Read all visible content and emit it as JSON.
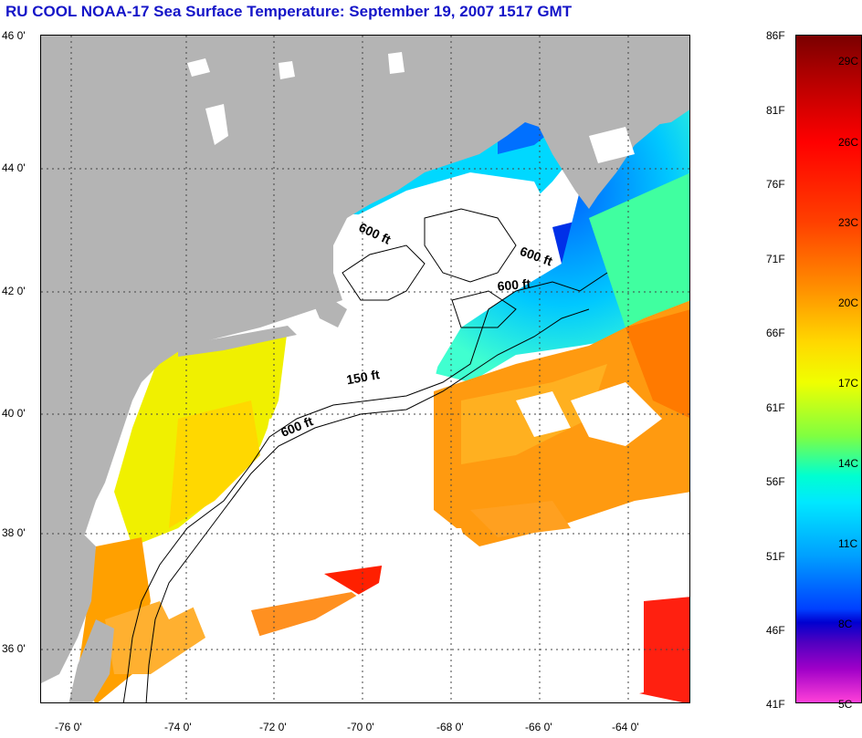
{
  "title": "RU COOL  NOAA-17  Sea Surface Temperature:  September 19, 2007 1517 GMT",
  "axes": {
    "lat_labels": [
      "46 0'",
      "44 0'",
      "42 0'",
      "40 0'",
      "38 0'",
      "36 0'"
    ],
    "lon_labels": [
      "-76 0'",
      "-74 0'",
      "-72 0'",
      "-70 0'",
      "-68 0'",
      "-66 0'",
      "-64 0'"
    ]
  },
  "contours": {
    "label_600_a": "600 ft",
    "label_600_b": "600 ft",
    "label_600_c": "600 ft",
    "label_600_d": "600 ft",
    "label_150": "150 ft"
  },
  "colorbar": {
    "fahrenheit": [
      "86F",
      "81F",
      "76F",
      "71F",
      "66F",
      "61F",
      "56F",
      "51F",
      "46F",
      "41F"
    ],
    "celsius": [
      "29C",
      "26C",
      "23C",
      "20C",
      "17C",
      "14C",
      "11C",
      "8C",
      "5C"
    ]
  },
  "colors": {
    "land": "#b4b4b4",
    "title": "#1515c8",
    "cloud": "#ffffff"
  }
}
